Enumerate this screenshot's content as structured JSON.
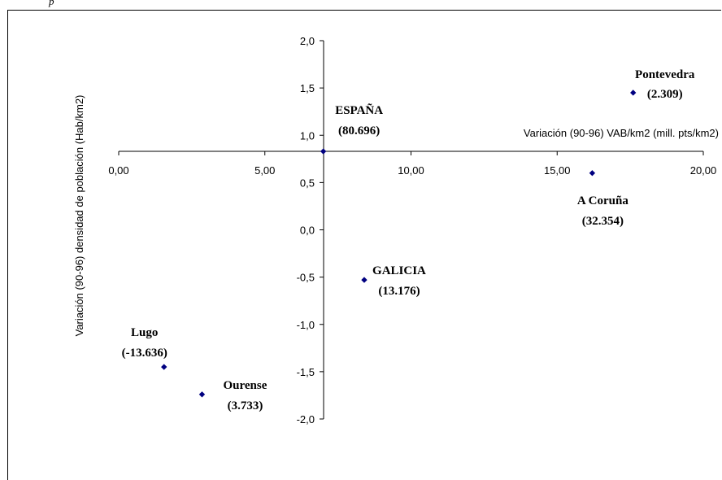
{
  "header_fragment": "p",
  "chart_data": {
    "type": "scatter",
    "xlabel": "Variación (90-96) VAB/km2 (mill. pts/km2)",
    "ylabel": "Variación (90-96) densidad de población (Hab/km2)",
    "xlim": [
      0,
      20
    ],
    "ylim": [
      -2.0,
      2.0
    ],
    "x_ticks": [
      "0,00",
      "5,00",
      "10,00",
      "15,00",
      "20,00"
    ],
    "y_ticks": [
      "2,0",
      "1,5",
      "1,0",
      "0,5",
      "0,0",
      "-0,5",
      "-1,0",
      "-1,5",
      "-2,0"
    ],
    "marker_color": "#000080",
    "points": [
      {
        "name": "ESPAÑA",
        "value": "(80.696)",
        "x": 7.0,
        "y": 0.83
      },
      {
        "name": "Pontevedra",
        "value": "(2.309)",
        "x": 17.6,
        "y": 1.45
      },
      {
        "name": "A Coruña",
        "value": "(32.354)",
        "x": 16.2,
        "y": 0.6
      },
      {
        "name": "GALICIA",
        "value": "(13.176)",
        "x": 8.4,
        "y": -0.53
      },
      {
        "name": "Lugo",
        "value": "(-13.636)",
        "x": 1.55,
        "y": -1.45
      },
      {
        "name": "Ourense",
        "value": "(3.733)",
        "x": 2.85,
        "y": -1.74
      }
    ]
  }
}
